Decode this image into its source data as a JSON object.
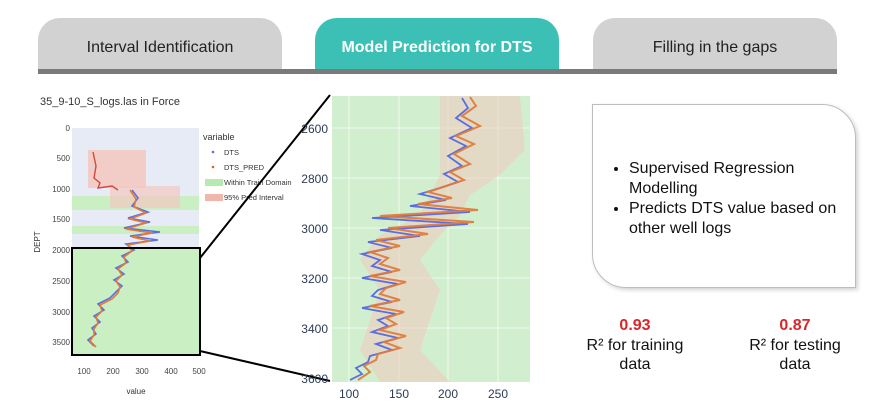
{
  "tabs": [
    {
      "label": "Interval Identification",
      "active": false
    },
    {
      "label": "Model Prediction for DTS",
      "active": true
    },
    {
      "label": "Filling in the gaps",
      "active": false
    }
  ],
  "colors": {
    "tab_active": "#3cc0b6",
    "tab_inactive": "#d2d2d2",
    "dts": "#5b6ee0",
    "dts_pred": "#e0602a",
    "train_domain": "#b7eab0",
    "pred_interval": "#f0b8ac",
    "metric": "#d9262b"
  },
  "left_plot": {
    "title": "35_9-10_S_logs.las in Force",
    "ylabel": "DEPT",
    "xlabel": "value",
    "y_ticks": [
      "0",
      "500",
      "1000",
      "1500",
      "2000",
      "2500",
      "3000",
      "3500"
    ],
    "x_ticks": [
      "100",
      "200",
      "300",
      "400",
      "500"
    ],
    "legend_title": "variable",
    "legend": [
      "DTS",
      "DTS_PRED",
      "Within Train Domain",
      "95% Pred Interval"
    ]
  },
  "zoom_plot": {
    "y_ticks": [
      "2600",
      "2800",
      "3000",
      "3200",
      "3400",
      "3600"
    ],
    "x_ticks": [
      "100",
      "150",
      "200",
      "250"
    ]
  },
  "callout": {
    "bullets": [
      "Supervised Regression Modelling",
      "Predicts DTS value based on other well logs"
    ]
  },
  "metrics": [
    {
      "value": "0.93",
      "label_line1": "R² for training",
      "label_line2": "data"
    },
    {
      "value": "0.87",
      "label_line1": "R² for testing",
      "label_line2": "data"
    }
  ]
}
